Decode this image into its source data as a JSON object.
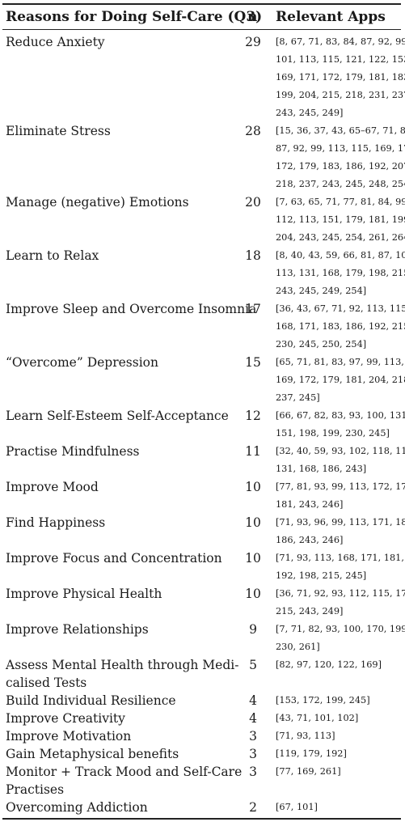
{
  "header": {
    "reason": "Reasons for Doing Self-Care (Q3)",
    "n": "n",
    "apps": "Relevant Apps"
  },
  "rows": [
    {
      "reason": [
        "Reduce Anxiety"
      ],
      "n": "29",
      "apps": [
        "[8, 67, 71, 83, 84, 87, 92, 99,",
        "101, 113, 115, 121, 122, 153,",
        "169, 171, 172, 179, 181, 183,",
        "199, 204, 215, 218, 231, 237,",
        "243, 245, 249]"
      ]
    },
    {
      "reason": [
        "Eliminate Stress"
      ],
      "n": "28",
      "apps": [
        "[15, 36, 37, 43, 65–67, 71, 81,",
        "87, 92, 99, 113, 115, 169, 171,",
        "172, 179, 183, 186, 192, 207,",
        "218, 237, 243, 245, 248, 254]"
      ]
    },
    {
      "reason": [
        "Manage (negative) Emotions"
      ],
      "n": "20",
      "apps": [
        "[7, 63, 65, 71, 77, 81, 84, 99,",
        "112, 113, 151, 179, 181, 199,",
        "204, 243, 245, 254, 261, 264]"
      ]
    },
    {
      "reason": [
        "Learn to Relax"
      ],
      "n": "18",
      "apps": [
        "[8, 40, 43, 59, 66, 81, 87, 102,",
        "113, 131, 168, 179, 198, 215,",
        "243, 245, 249, 254]"
      ]
    },
    {
      "reason": [
        "Improve Sleep and Overcome Insomnia"
      ],
      "n": "17",
      "apps": [
        "[36, 43, 67, 71, 92, 113, 115,",
        "168, 171, 183, 186, 192, 215,",
        "230, 245, 250, 254]"
      ]
    },
    {
      "reason": [
        "“Overcome” Depression"
      ],
      "n": "15",
      "apps": [
        "[65, 71, 81, 83, 97, 99, 113,",
        "169, 172, 179, 181, 204, 218,",
        "237, 245]"
      ]
    },
    {
      "reason": [
        "Learn Self-Esteem Self-Acceptance"
      ],
      "n": "12",
      "apps": [
        "[66, 67, 82, 83, 93, 100, 131,",
        "151, 198, 199, 230, 245]"
      ]
    },
    {
      "reason": [
        "Practise Mindfulness"
      ],
      "n": "11",
      "apps": [
        "[32, 40, 59, 93, 102, 118, 119,",
        "131, 168, 186, 243]"
      ]
    },
    {
      "reason": [
        "Improve Mood"
      ],
      "n": "10",
      "apps": [
        "[77, 81, 93, 99, 113, 172, 179,",
        "181, 243, 246]"
      ]
    },
    {
      "reason": [
        "Find Happiness"
      ],
      "n": "10",
      "apps": [
        "[71, 93, 96, 99, 113, 171, 183,",
        "186, 243, 246]"
      ]
    },
    {
      "reason": [
        "Improve Focus and Concentration"
      ],
      "n": "10",
      "apps": [
        "[71, 93, 113, 168, 171, 181,",
        "192, 198, 215, 245]"
      ]
    },
    {
      "reason": [
        "Improve Physical Health"
      ],
      "n": "10",
      "apps": [
        "[36, 71, 92, 93, 112, 115, 179,",
        "215, 243, 249]"
      ]
    },
    {
      "reason": [
        "Improve Relationships"
      ],
      "n": "9",
      "apps": [
        "[7, 71, 82, 93, 100, 170, 199,",
        "230, 261]"
      ]
    },
    {
      "reason": [
        "Assess Mental Health through Medi-",
        "calised Tests"
      ],
      "n": "5",
      "apps": [
        "[82, 97, 120, 122, 169]"
      ]
    },
    {
      "reason": [
        "Build Individual Resilience"
      ],
      "n": "4",
      "apps": [
        "[153, 172, 199, 245]"
      ]
    },
    {
      "reason": [
        "Improve Creativity"
      ],
      "n": "4",
      "apps": [
        "[43, 71, 101, 102]"
      ]
    },
    {
      "reason": [
        "Improve Motivation"
      ],
      "n": "3",
      "apps": [
        "[71, 93, 113]"
      ]
    },
    {
      "reason": [
        "Gain Metaphysical benefits"
      ],
      "n": "3",
      "apps": [
        "[119, 179, 192]"
      ]
    },
    {
      "reason": [
        "Monitor + Track Mood and Self-Care",
        "Practises"
      ],
      "n": "3",
      "apps": [
        "[77, 169, 261]"
      ]
    },
    {
      "reason": [
        "Overcoming Addiction"
      ],
      "n": "2",
      "apps": [
        "[67, 101]"
      ]
    }
  ]
}
